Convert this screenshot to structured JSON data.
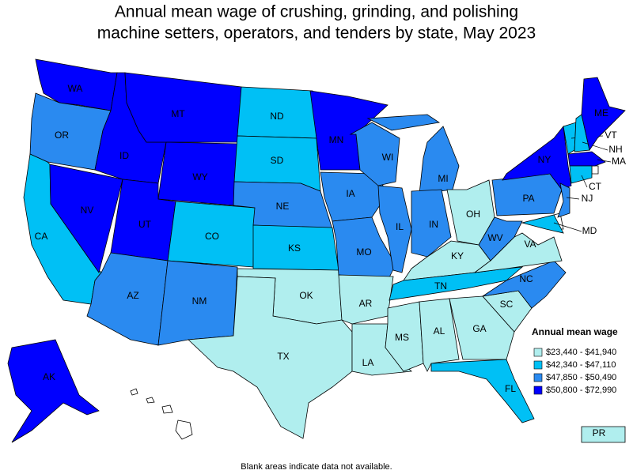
{
  "map_data": {
    "title": [
      "Annual mean wage of crushing, grinding, and polishing",
      "machine setters, operators, and tenders by state, May 2023"
    ],
    "legend": {
      "title": "Annual mean wage",
      "items": [
        {
          "label": "$23,440 - $41,940",
          "color": "#b0eeee"
        },
        {
          "label": "$42,340 - $47,110",
          "color": "#00c0f5"
        },
        {
          "label": "$47,850 - $50,490",
          "color": "#2a8af0"
        },
        {
          "label": "$50,800 - $72,990",
          "color": "#0000ff"
        }
      ]
    },
    "states": [
      {
        "abbr": "WA",
        "bin": 3
      },
      {
        "abbr": "OR",
        "bin": 2
      },
      {
        "abbr": "CA",
        "bin": 1
      },
      {
        "abbr": "NV",
        "bin": 3
      },
      {
        "abbr": "ID",
        "bin": 3
      },
      {
        "abbr": "MT",
        "bin": 3
      },
      {
        "abbr": "WY",
        "bin": 3
      },
      {
        "abbr": "UT",
        "bin": 3
      },
      {
        "abbr": "CO",
        "bin": 1
      },
      {
        "abbr": "AZ",
        "bin": 2
      },
      {
        "abbr": "NM",
        "bin": 2
      },
      {
        "abbr": "ND",
        "bin": 1
      },
      {
        "abbr": "SD",
        "bin": 1
      },
      {
        "abbr": "NE",
        "bin": 2
      },
      {
        "abbr": "KS",
        "bin": 1
      },
      {
        "abbr": "OK",
        "bin": 0
      },
      {
        "abbr": "TX",
        "bin": 0
      },
      {
        "abbr": "MN",
        "bin": 3
      },
      {
        "abbr": "IA",
        "bin": 2
      },
      {
        "abbr": "MO",
        "bin": 2
      },
      {
        "abbr": "AR",
        "bin": 0
      },
      {
        "abbr": "LA",
        "bin": 0
      },
      {
        "abbr": "WI",
        "bin": 2
      },
      {
        "abbr": "IL",
        "bin": 2
      },
      {
        "abbr": "MI",
        "bin": 2
      },
      {
        "abbr": "IN",
        "bin": 2
      },
      {
        "abbr": "OH",
        "bin": 0
      },
      {
        "abbr": "KY",
        "bin": 0
      },
      {
        "abbr": "TN",
        "bin": 1
      },
      {
        "abbr": "MS",
        "bin": 0
      },
      {
        "abbr": "AL",
        "bin": 0
      },
      {
        "abbr": "GA",
        "bin": 0
      },
      {
        "abbr": "FL",
        "bin": 1
      },
      {
        "abbr": "SC",
        "bin": 0
      },
      {
        "abbr": "NC",
        "bin": 2
      },
      {
        "abbr": "VA",
        "bin": 0
      },
      {
        "abbr": "WV",
        "bin": 2
      },
      {
        "abbr": "PA",
        "bin": 2
      },
      {
        "abbr": "NY",
        "bin": 3
      },
      {
        "abbr": "VT",
        "bin": 1
      },
      {
        "abbr": "NH",
        "bin": 1
      },
      {
        "abbr": "ME",
        "bin": 3
      },
      {
        "abbr": "MA",
        "bin": 3
      },
      {
        "abbr": "CT",
        "bin": 1
      },
      {
        "abbr": "NJ",
        "bin": 2
      },
      {
        "abbr": "MD",
        "bin": 1
      },
      {
        "abbr": "AK",
        "bin": 3
      },
      {
        "abbr": "PR",
        "bin": 0
      }
    ],
    "footnote": "Blank areas indicate data not available."
  }
}
